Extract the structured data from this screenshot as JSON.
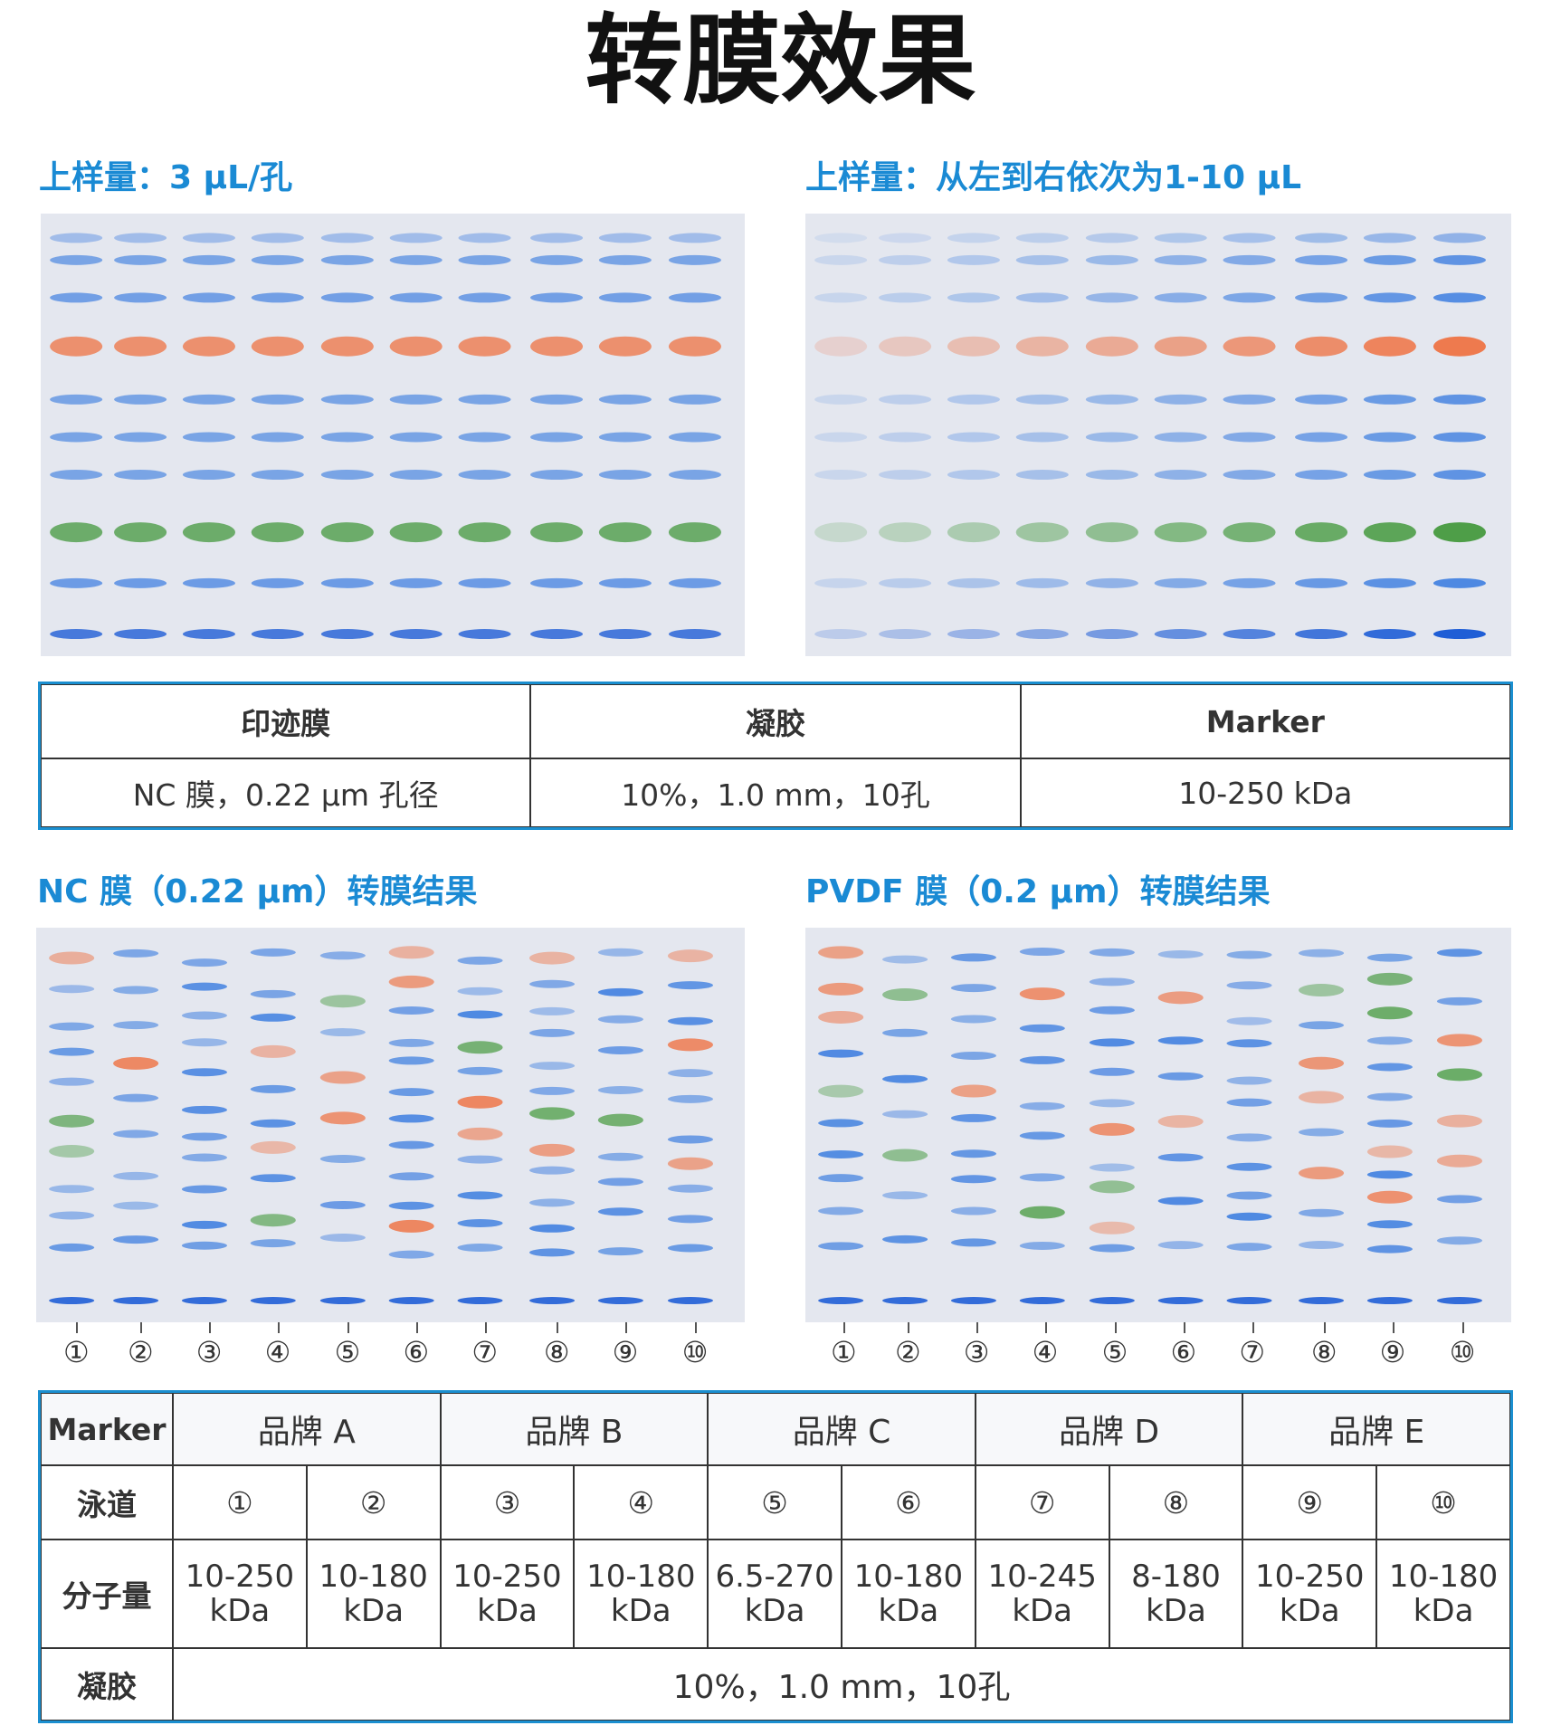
{
  "header": {
    "title": "转膜效果"
  },
  "panels": [
    {
      "label": "上样量：3 μL/孔"
    },
    {
      "label": "上样量：从左到右依次为1-10 μL"
    },
    {
      "label": "NC 膜（0.22 μm）转膜结果"
    },
    {
      "label": "PVDF 膜（0.2 μm）转膜结果"
    }
  ],
  "lane_numbers": [
    "①",
    "②",
    "③",
    "④",
    "⑤",
    "⑥",
    "⑦",
    "⑧",
    "⑨",
    "⑩"
  ],
  "table1": {
    "headers": [
      "印迹膜",
      "凝胶",
      "Marker"
    ],
    "rows": [
      [
        "NC 膜，0.22 μm 孔径",
        "10%，1.0 mm，10孔",
        "10-250 kDa"
      ]
    ]
  },
  "table2": {
    "corner": "Marker",
    "brands": [
      "品牌 A",
      "品牌 B",
      "品牌 C",
      "品牌 D",
      "品牌 E"
    ],
    "lane_row": {
      "label": "泳道",
      "cells": [
        "①",
        "②",
        "③",
        "④",
        "⑤",
        "⑥",
        "⑦",
        "⑧",
        "⑨",
        "⑩"
      ]
    },
    "mw_row": {
      "label": "分子量",
      "cells": [
        [
          "10-250",
          "kDa"
        ],
        [
          "10-180",
          "kDa"
        ],
        [
          "10-250",
          "kDa"
        ],
        [
          "10-180",
          "kDa"
        ],
        [
          "6.5-270",
          "kDa"
        ],
        [
          "10-180",
          "kDa"
        ],
        [
          "10-245",
          "kDa"
        ],
        [
          "8-180",
          "kDa"
        ],
        [
          "10-250",
          "kDa"
        ],
        [
          "10-180",
          "kDa"
        ]
      ]
    },
    "gel_row": {
      "label": "凝胶",
      "value": "10%，1.0 mm，10孔"
    }
  }
}
